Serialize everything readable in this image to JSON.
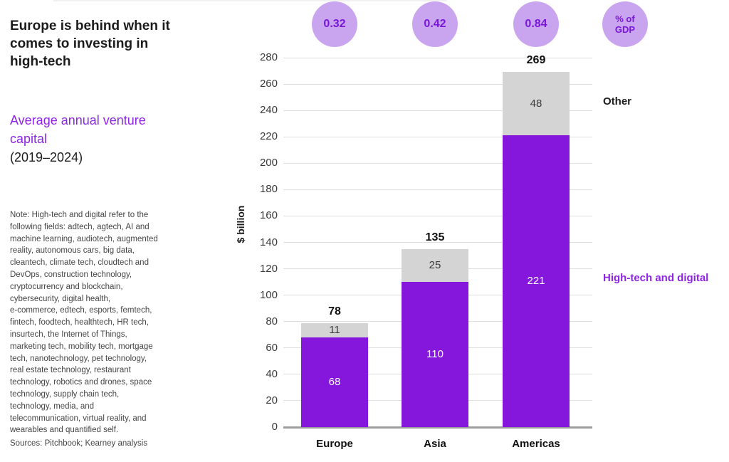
{
  "header": {
    "title_lines": [
      "Europe is behind when it",
      "comes to investing in",
      "high-tech"
    ],
    "subtitle_lines": [
      "Average annual venture",
      "capital"
    ],
    "period": "(2019–2024)"
  },
  "note": {
    "lines": [
      "Note: High-tech and digital refer to the",
      "following fields: adtech, agtech, AI and",
      "machine learning, audiotech, augmented",
      "reality, autonomous cars, big data,",
      "cleantech, climate tech, cloudtech and",
      "DevOps, construction technology,",
      "cryptocurrency and blockchain,",
      "cybersecurity, digital health,",
      "e-commerce, edtech, esports, femtech,",
      "fintech, foodtech, healthtech, HR tech,",
      "insurtech, the Internet of Things,",
      "marketing tech, mobility tech, mortgage",
      "tech, nanotechnology, pet technology,",
      "real estate technology, restaurant",
      "technology, robotics and drones, space",
      "technology, supply chain tech,",
      "technology, media, and",
      "telecommunication, virtual reality, and",
      "wearables and quantified self."
    ]
  },
  "footer": {
    "sources": "Sources: Pitchbook; Kearney analysis"
  },
  "colors": {
    "purple_bar": "#8517dd",
    "gray_bar": "#d4d4d4",
    "accent_text": "#8e24e6",
    "badge_fill": "#c9a5f0",
    "badge_text": "#7a16d8"
  },
  "chart_data": {
    "type": "bar",
    "stacked": true,
    "title": "Average annual venture capital (2019–2024)",
    "categories": [
      "Europe",
      "Asia",
      "Americas"
    ],
    "series": [
      {
        "name": "High-tech and digital",
        "color": "#8517dd",
        "label_color": "#ffffff",
        "values": [
          68,
          110,
          221
        ]
      },
      {
        "name": "Other",
        "color": "#d4d4d4",
        "label_color": "#3c3c3c",
        "values": [
          11,
          25,
          48
        ]
      }
    ],
    "totals": [
      78,
      135,
      269
    ],
    "pct_of_gdp": [
      "0.32",
      "0.42",
      "0.84"
    ],
    "gdp_badge_lines": [
      "% of",
      "GDP"
    ],
    "ylabel": "$ billion",
    "ylim": [
      0,
      280
    ],
    "ytick_step": 20,
    "grid": true,
    "legend": {
      "other": "Other",
      "hightech": "High-tech and digital"
    }
  }
}
